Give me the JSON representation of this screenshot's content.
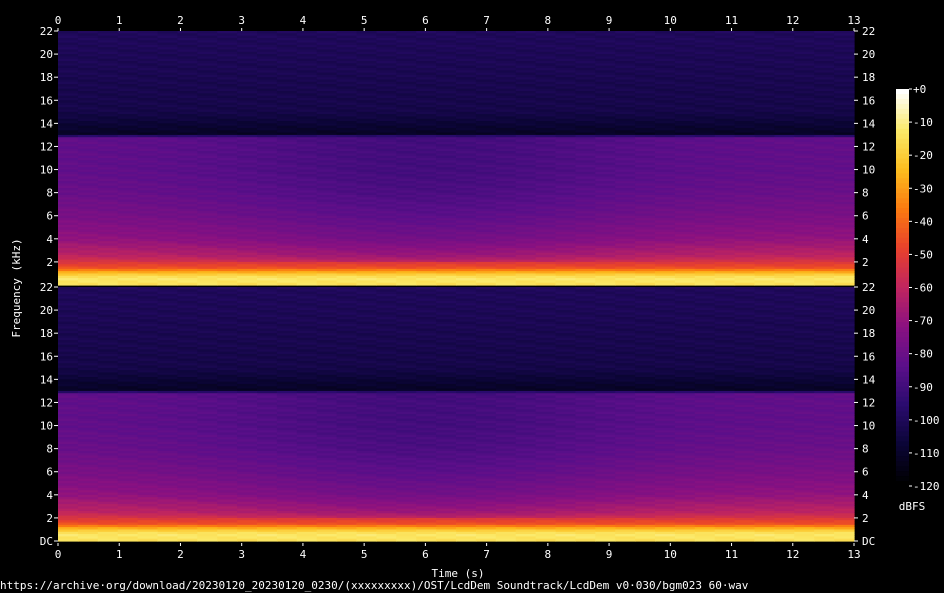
{
  "source_url": "https://archive·org/download/20230120_20230120_0230/(xxxxxxxxx)/OST/LcdDem Soundtrack/LcdDem v0·030/bgm023 60·wav",
  "colors": {
    "background": "#000000",
    "text": "#ffffff",
    "colormap": [
      "#000000",
      "#0b0536",
      "#2a0b6e",
      "#5b0f8a",
      "#8a1181",
      "#c0255f",
      "#e8412c",
      "#fb7a10",
      "#fcbd1e",
      "#fbe968",
      "#ffffff"
    ]
  },
  "chart_data": {
    "type": "heatmap",
    "title": "",
    "xlabel": "Time (s)",
    "ylabel": "Frequency (kHz)",
    "colorbar_label": "dBFS",
    "xlim": [
      0,
      13
    ],
    "x_ticks": [
      "0",
      "1",
      "2",
      "3",
      "4",
      "5",
      "6",
      "7",
      "8",
      "9",
      "10",
      "11",
      "12",
      "13"
    ],
    "channels": [
      {
        "ylim": [
          0,
          22
        ],
        "y_ticks": [
          "2",
          "4",
          "6",
          "8",
          "10",
          "12",
          "14",
          "16",
          "18",
          "20",
          "22"
        ],
        "bottom_tick": ""
      },
      {
        "ylim": [
          0,
          22
        ],
        "y_ticks": [
          "2",
          "4",
          "6",
          "8",
          "10",
          "12",
          "14",
          "16",
          "18",
          "20",
          "22"
        ],
        "bottom_tick": "DC"
      }
    ],
    "colorbar_ticks": [
      "+0",
      "-10",
      "-20",
      "-30",
      "-40",
      "-50",
      "-60",
      "-70",
      "-80",
      "-90",
      "-100",
      "-110",
      "-120"
    ],
    "colorbar_range": [
      -120,
      0
    ],
    "cutoff_khz": 12.9,
    "level_profile": [
      {
        "freq_khz": 0.1,
        "dbfs": -14
      },
      {
        "freq_khz": 0.6,
        "dbfs": -12
      },
      {
        "freq_khz": 1.0,
        "dbfs": -22
      },
      {
        "freq_khz": 1.5,
        "dbfs": -45
      },
      {
        "freq_khz": 2.5,
        "dbfs": -60
      },
      {
        "freq_khz": 4.0,
        "dbfs": -70
      },
      {
        "freq_khz": 6.0,
        "dbfs": -76
      },
      {
        "freq_khz": 8.0,
        "dbfs": -80
      },
      {
        "freq_khz": 10.0,
        "dbfs": -82
      },
      {
        "freq_khz": 12.8,
        "dbfs": -82
      },
      {
        "freq_khz": 13.0,
        "dbfs": -112
      },
      {
        "freq_khz": 15.0,
        "dbfs": -104
      },
      {
        "freq_khz": 22.0,
        "dbfs": -100
      }
    ],
    "dip": {
      "time_s": 6.0,
      "width_s": 3.5,
      "depth_db": 8
    }
  }
}
